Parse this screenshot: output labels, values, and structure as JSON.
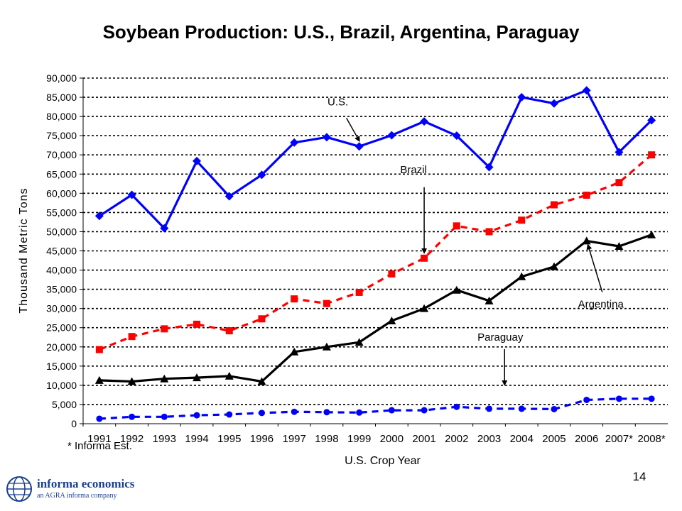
{
  "slide": {
    "title": "Soybean Production: U.S., Brazil, Argentina, Paraguay",
    "page_number": "14",
    "footnote": "* Informa Est."
  },
  "logo": {
    "brand": "informa economics",
    "tagline": "an AGRA informa company"
  },
  "colors": {
    "us": "#0000ff",
    "brazil": "#ff0000",
    "argentina": "#000000",
    "paraguay": "#0000ff",
    "grid": "#000000",
    "logo": "#1a3f8f"
  },
  "chart_data": {
    "type": "line",
    "title": "",
    "xlabel": "U.S. Crop Year",
    "ylabel": "Thousand Metric Tons",
    "categories": [
      "1991",
      "1992",
      "1993",
      "1994",
      "1995",
      "1996",
      "1997",
      "1998",
      "1999",
      "2000",
      "2001",
      "2002",
      "2003",
      "2004",
      "2005",
      "2006",
      "2007*",
      "2008*"
    ],
    "ylim": [
      0,
      90000
    ],
    "ytick_step": 5000,
    "ytick_labels": [
      "0",
      "5,000",
      "10,000",
      "15,000",
      "20,000",
      "25,000",
      "30,000",
      "35,000",
      "40,000",
      "45,000",
      "50,000",
      "55,000",
      "60,000",
      "65,000",
      "70,000",
      "75,000",
      "80,000",
      "85,000",
      "90,000"
    ],
    "grid": "horizontal dashed",
    "legend": "none (inline labels)",
    "series": [
      {
        "name": "U.S.",
        "key": "us",
        "style": "solid",
        "marker": "diamond",
        "values": [
          54100,
          59600,
          50900,
          68400,
          59200,
          64800,
          73200,
          74600,
          72200,
          75100,
          78700,
          75000,
          66800,
          85000,
          83400,
          86800,
          70700,
          79000
        ]
      },
      {
        "name": "Brazil",
        "key": "brazil",
        "style": "dashed",
        "marker": "square",
        "values": [
          19300,
          22700,
          24700,
          25900,
          24200,
          27300,
          32500,
          31300,
          34200,
          39000,
          43100,
          51500,
          50000,
          53000,
          57000,
          59500,
          62800,
          70000
        ]
      },
      {
        "name": "Argentina",
        "key": "argentina",
        "style": "solid",
        "marker": "triangle",
        "values": [
          11300,
          11000,
          11700,
          12000,
          12400,
          11000,
          18700,
          20000,
          21200,
          26800,
          30000,
          34800,
          32000,
          38300,
          40900,
          47600,
          46200,
          49200
        ]
      },
      {
        "name": "Paraguay",
        "key": "paraguay",
        "style": "dashed",
        "marker": "circle",
        "values": [
          1300,
          1800,
          1800,
          2200,
          2400,
          2800,
          3100,
          3000,
          2900,
          3500,
          3500,
          4400,
          3900,
          3900,
          3800,
          6200,
          6500,
          6500
        ]
      }
    ],
    "annotations": [
      {
        "text": "U.S.",
        "series": "us"
      },
      {
        "text": "Brazil",
        "series": "brazil"
      },
      {
        "text": "Argentina",
        "series": "argentina"
      },
      {
        "text": "Paraguay",
        "series": "paraguay"
      }
    ]
  }
}
